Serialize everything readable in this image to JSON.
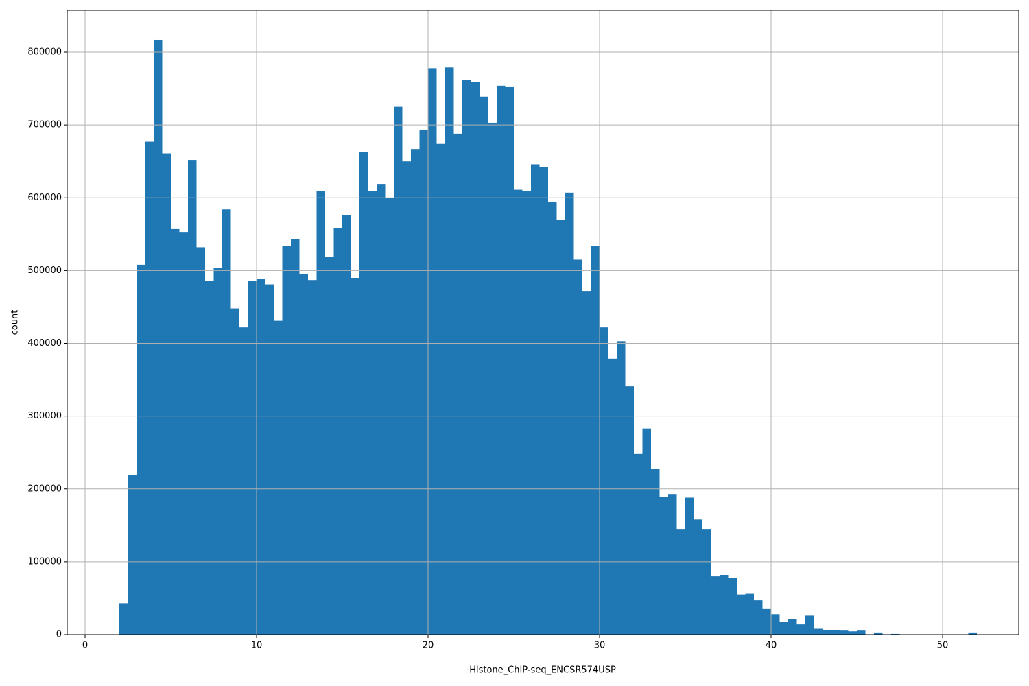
{
  "chart_data": {
    "type": "histogram",
    "xlabel": "Histone_ChIP-seq_ENCSR574USP",
    "ylabel": "count",
    "color": "#1f77b4",
    "grid": true,
    "bins": [
      2,
      2.5,
      3,
      3.5,
      4,
      4.5,
      5,
      5.5,
      6,
      6.5,
      7,
      7.5,
      8,
      8.5,
      9,
      9.5,
      10,
      10.5,
      11,
      11.5,
      12,
      12.5,
      13,
      13.5,
      14,
      14.5,
      15,
      15.5,
      16,
      16.5,
      17,
      17.5,
      18,
      18.5,
      19,
      19.5,
      20,
      20.5,
      21,
      21.5,
      22,
      22.5,
      23,
      23.5,
      24,
      24.5,
      25,
      25.5,
      26,
      26.5,
      27,
      27.5,
      28,
      28.5,
      29,
      29.5,
      30,
      30.5,
      31,
      31.5,
      32,
      32.5,
      33,
      33.5,
      34,
      34.5,
      35,
      35.5,
      36,
      36.5,
      37,
      37.5,
      38,
      38.5,
      39,
      39.5,
      40,
      40.5,
      41,
      41.5,
      42,
      42.5,
      43,
      43.5,
      44,
      44.5,
      45,
      45.5,
      46,
      46.5,
      47,
      47.5,
      48,
      48.5,
      49,
      49.5,
      50,
      50.5,
      51,
      51.5,
      52
    ],
    "values": [
      43000,
      219000,
      508000,
      677000,
      817000,
      661000,
      557000,
      553000,
      652000,
      532000,
      486000,
      504000,
      584000,
      448000,
      422000,
      486000,
      489000,
      481000,
      431000,
      534000,
      543000,
      495000,
      487000,
      609000,
      519000,
      558000,
      576000,
      490000,
      663000,
      609000,
      619000,
      600000,
      725000,
      650000,
      667000,
      693000,
      778000,
      674000,
      779000,
      688000,
      762000,
      759000,
      739000,
      703000,
      754000,
      752000,
      611000,
      609000,
      646000,
      642000,
      594000,
      570000,
      607000,
      515000,
      472000,
      534000,
      422000,
      379000,
      403000,
      341000,
      248000,
      283000,
      228000,
      189000,
      193000,
      145000,
      188000,
      158000,
      145000,
      80000,
      82000,
      78000,
      55000,
      56000,
      47000,
      35000,
      28000,
      17000,
      21000,
      14000,
      26000,
      8000,
      6500,
      6500,
      5500,
      4500,
      5500,
      500,
      2000,
      500,
      1000,
      300,
      300,
      300,
      300,
      300,
      300,
      300,
      300,
      2000,
      300
    ],
    "xlim": [
      -1.04,
      54.44
    ],
    "ylim": [
      0,
      857500
    ],
    "xticks": [
      0,
      10,
      20,
      30,
      40,
      50
    ],
    "yticks": [
      0,
      100000,
      200000,
      300000,
      400000,
      500000,
      600000,
      700000,
      800000
    ]
  }
}
